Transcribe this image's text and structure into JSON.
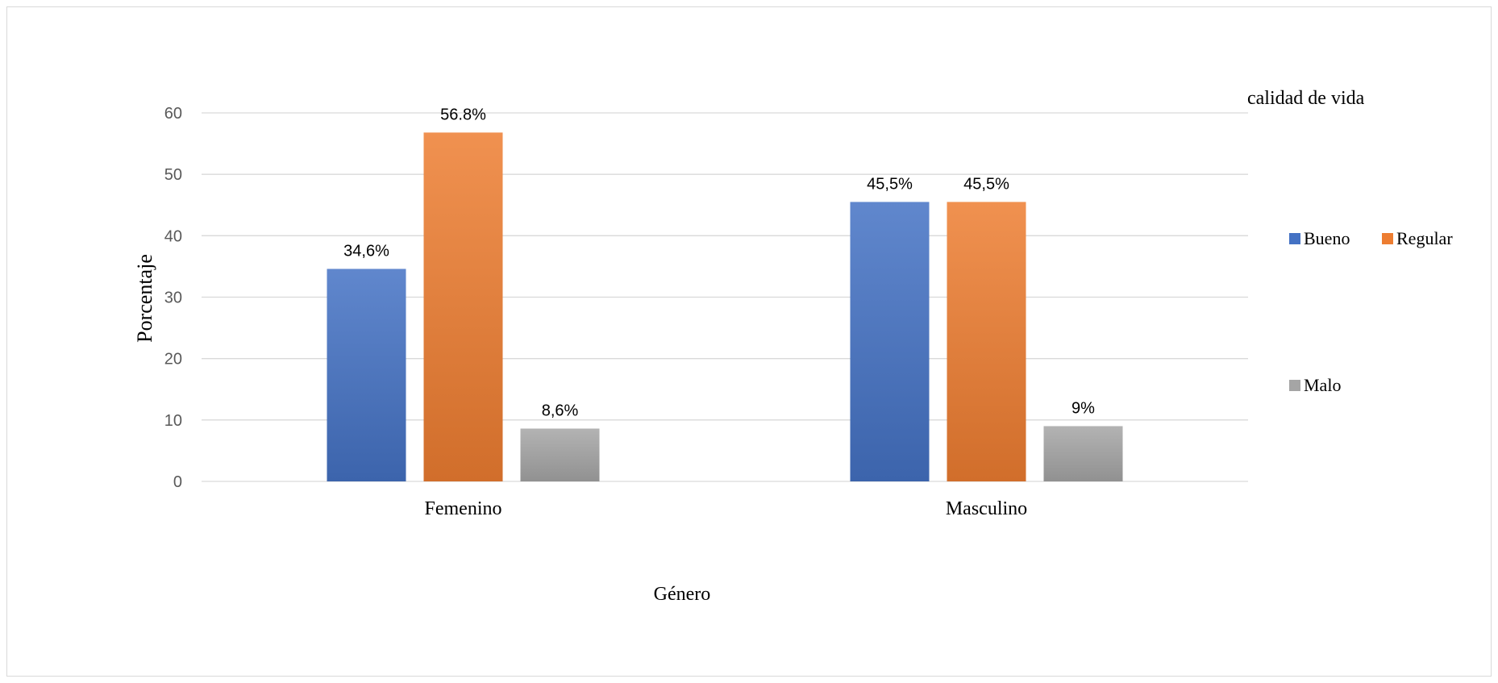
{
  "chart_data": {
    "type": "bar",
    "categories": [
      "Femenino",
      "Masculino"
    ],
    "series": [
      {
        "name": "Bueno",
        "values": [
          34.6,
          45.5
        ],
        "labels": [
          "34,6%",
          "45,5%"
        ],
        "color": "#4472c4"
      },
      {
        "name": "Regular",
        "values": [
          56.8,
          45.5
        ],
        "labels": [
          "56.8%",
          "45,5%"
        ],
        "color": "#ed7d31"
      },
      {
        "name": "Malo",
        "values": [
          8.6,
          9
        ],
        "labels": [
          "8,6%",
          "9%"
        ],
        "color": "#a5a5a5"
      }
    ],
    "title": "",
    "xlabel": "Género",
    "ylabel": "Porcentaje",
    "legend_title": "calidad de vida",
    "legend_position": "right",
    "ylim": [
      0,
      60
    ],
    "yticks": [
      0,
      10,
      20,
      30,
      40,
      50,
      60
    ],
    "grid": true
  }
}
